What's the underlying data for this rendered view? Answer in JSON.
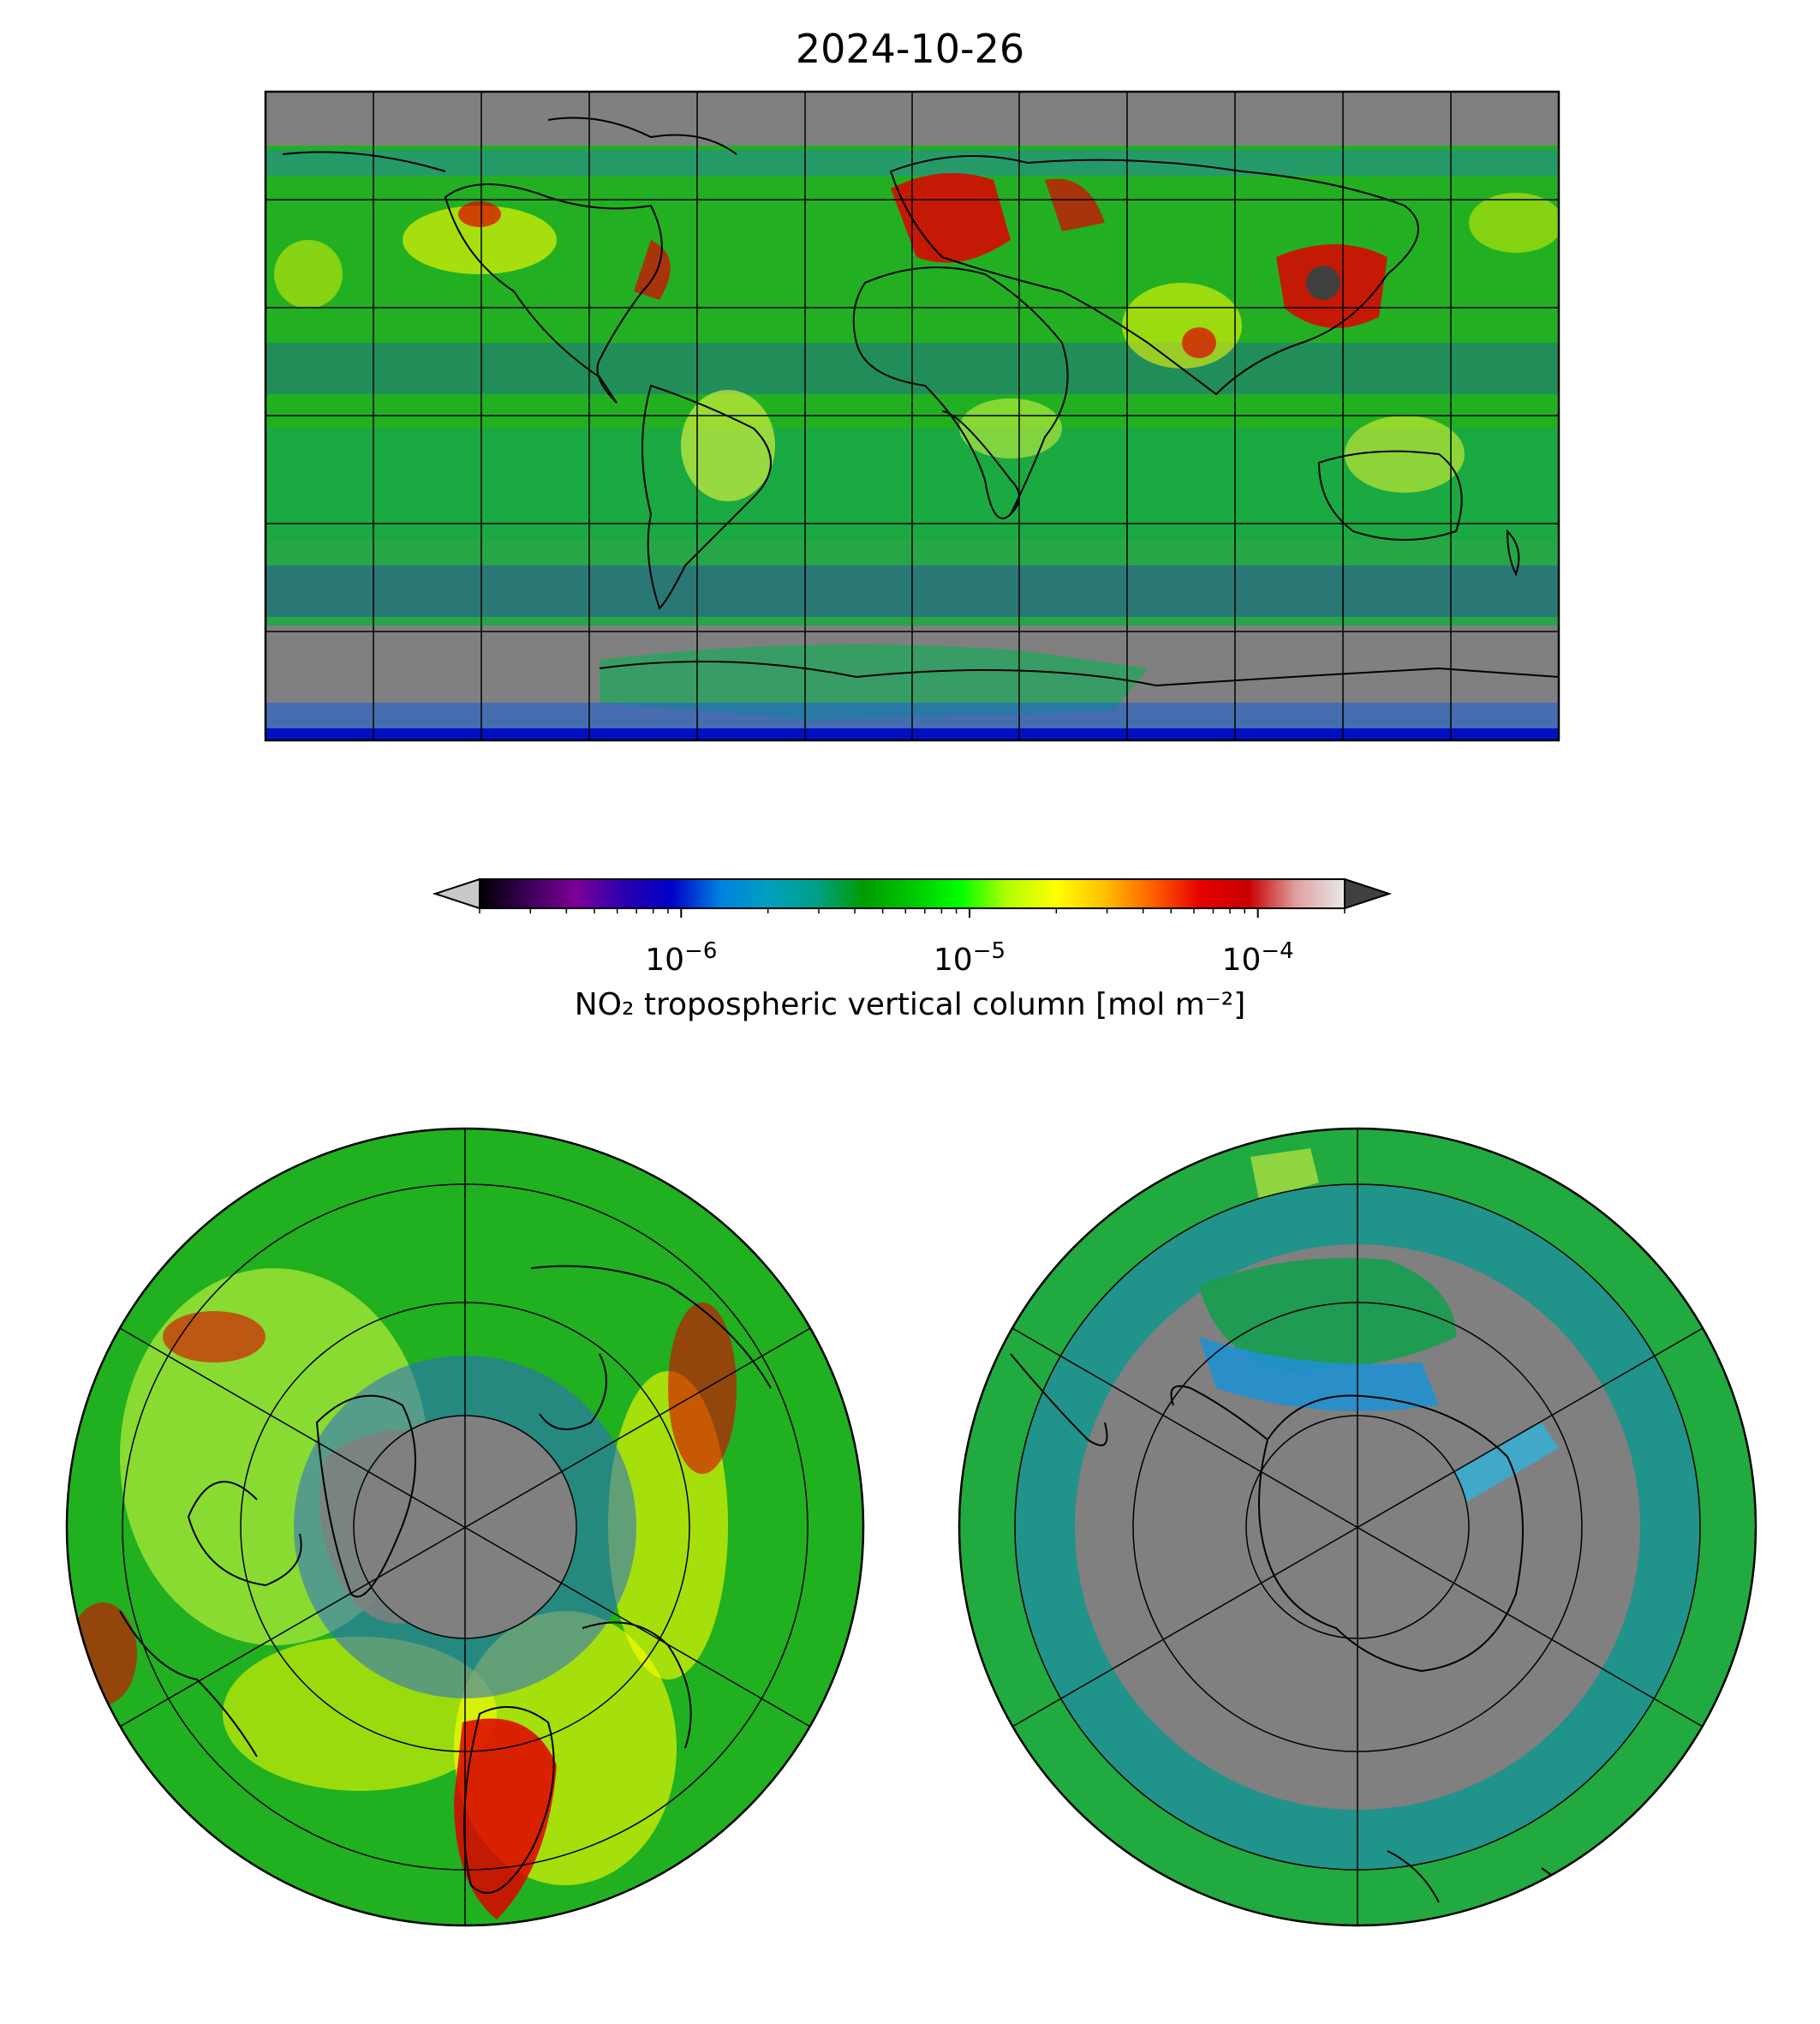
{
  "title": "2024-10-26",
  "colorbar": {
    "label": "NO₂ tropospheric vertical column [mol m⁻²]",
    "scale": "log",
    "vmin": 2e-07,
    "vmax": 0.0002,
    "ticks": [
      {
        "value": 1e-06,
        "base": "10",
        "exp": "−6"
      },
      {
        "value": 1e-05,
        "base": "10",
        "exp": "−5"
      },
      {
        "value": 0.0001,
        "base": "10",
        "exp": "−4"
      }
    ],
    "extend": "both",
    "under_color": "#c8c8c8",
    "over_color": "#404040",
    "colormap": [
      "#000000",
      "#3a0058",
      "#7d0098",
      "#2b00b0",
      "#0000c8",
      "#0080e0",
      "#00a0c0",
      "#00a088",
      "#009c00",
      "#00c800",
      "#00ff00",
      "#b4ff00",
      "#ffff00",
      "#ffc000",
      "#ff6000",
      "#e80000",
      "#c80000",
      "#e0a0a0",
      "#e8e8e8"
    ]
  },
  "maps": [
    {
      "name": "global",
      "projection": "plate-carree",
      "missing_color": "#808080"
    },
    {
      "name": "north-polar",
      "projection": "north-polar-stereographic"
    },
    {
      "name": "south-polar",
      "projection": "south-polar-stereographic"
    }
  ]
}
